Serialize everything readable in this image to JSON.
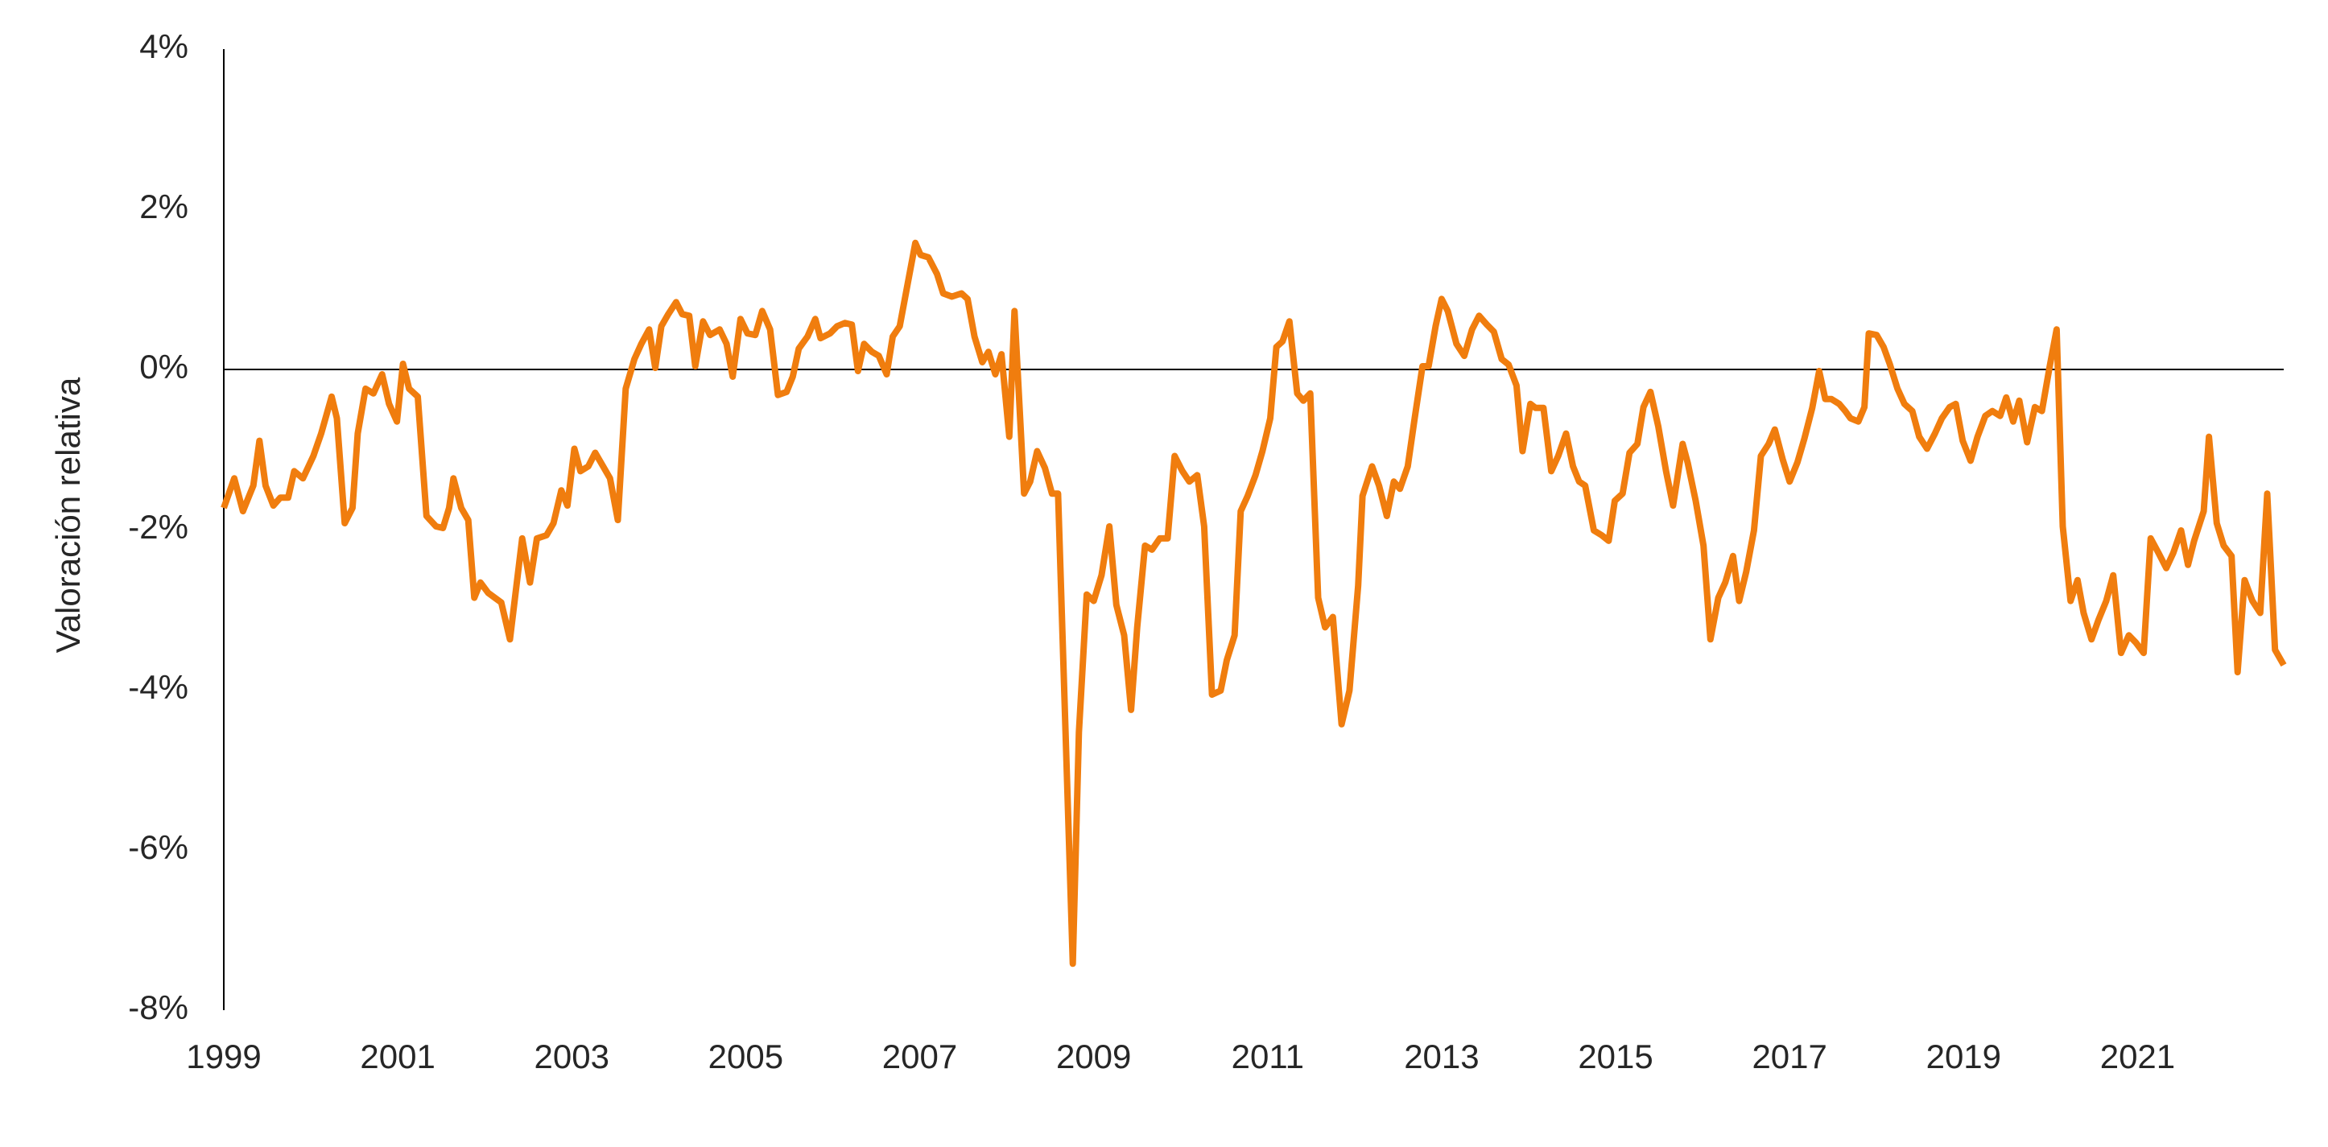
{
  "chart_data": {
    "type": "line",
    "y_label": "Valoración relativa",
    "color": "#f07d0e",
    "reference_line": 0,
    "xlim": [
      1999,
      2022.68
    ],
    "xticks": [
      1999,
      2001,
      2003,
      2005,
      2007,
      2009,
      2011,
      2013,
      2015,
      2017,
      2019,
      2021
    ],
    "ylim": [
      -8,
      4
    ],
    "yticks": [
      {
        "value": -8,
        "label": "-8%"
      },
      {
        "value": -6,
        "label": "-6%"
      },
      {
        "value": -4,
        "label": "-4%"
      },
      {
        "value": -2,
        "label": "-2%"
      },
      {
        "value": 0,
        "label": "0%"
      },
      {
        "value": 2,
        "label": "2%"
      },
      {
        "value": 4,
        "label": "4%"
      }
    ],
    "x": [
      1999.0,
      1999.12,
      1999.22,
      1999.34,
      1999.41,
      1999.48,
      1999.57,
      1999.65,
      1999.74,
      1999.81,
      1999.91,
      2000.03,
      2000.12,
      2000.24,
      2000.3,
      2000.39,
      2000.48,
      2000.54,
      2000.63,
      2000.72,
      2000.82,
      2000.9,
      2000.99,
      2001.06,
      2001.13,
      2001.23,
      2001.33,
      2001.44,
      2001.52,
      2001.59,
      2001.64,
      2001.73,
      2001.81,
      2001.88,
      2001.95,
      2002.04,
      2002.19,
      2002.29,
      2002.43,
      2002.52,
      2002.6,
      2002.71,
      2002.79,
      2002.88,
      2002.95,
      2003.03,
      2003.1,
      2003.19,
      2003.27,
      2003.36,
      2003.44,
      2003.53,
      2003.62,
      2003.72,
      2003.8,
      2003.89,
      2003.96,
      2004.03,
      2004.11,
      2004.2,
      2004.27,
      2004.35,
      2004.42,
      2004.51,
      2004.59,
      2004.7,
      2004.78,
      2004.85,
      2004.94,
      2005.02,
      2005.11,
      2005.19,
      2005.28,
      2005.37,
      2005.47,
      2005.54,
      2005.61,
      2005.71,
      2005.8,
      2005.86,
      2005.97,
      2006.05,
      2006.14,
      2006.22,
      2006.29,
      2006.36,
      2006.45,
      2006.53,
      2006.62,
      2006.69,
      2006.77,
      2006.86,
      2006.95,
      2007.01,
      2007.1,
      2007.2,
      2007.27,
      2007.37,
      2007.48,
      2007.55,
      2007.63,
      2007.72,
      2007.79,
      2007.87,
      2007.94,
      2008.03,
      2008.09,
      2008.2,
      2008.27,
      2008.35,
      2008.44,
      2008.52,
      2008.59,
      2008.76,
      2008.83,
      2008.92,
      2009.0,
      2009.09,
      2009.18,
      2009.26,
      2009.35,
      2009.43,
      2009.5,
      2009.59,
      2009.67,
      2009.76,
      2009.85,
      2009.93,
      2010.02,
      2010.1,
      2010.19,
      2010.27,
      2010.36,
      2010.46,
      2010.53,
      2010.62,
      2010.69,
      2010.77,
      2010.86,
      2010.94,
      2011.03,
      2011.1,
      2011.17,
      2011.25,
      2011.34,
      2011.41,
      2011.49,
      2011.58,
      2011.66,
      2011.75,
      2011.85,
      2011.94,
      2012.04,
      2012.09,
      2012.2,
      2012.28,
      2012.37,
      2012.45,
      2012.52,
      2012.61,
      2012.69,
      2012.78,
      2012.85,
      2012.93,
      2013.0,
      2013.07,
      2013.17,
      2013.26,
      2013.35,
      2013.43,
      2013.52,
      2013.6,
      2013.69,
      2013.77,
      2013.86,
      2013.93,
      2014.02,
      2014.08,
      2014.17,
      2014.26,
      2014.34,
      2014.43,
      2014.51,
      2014.58,
      2014.65,
      2014.75,
      2014.84,
      2014.92,
      2014.99,
      2015.08,
      2015.16,
      2015.25,
      2015.32,
      2015.4,
      2015.49,
      2015.58,
      2015.66,
      2015.77,
      2015.83,
      2015.92,
      2016.01,
      2016.09,
      2016.18,
      2016.26,
      2016.35,
      2016.42,
      2016.5,
      2016.59,
      2016.67,
      2016.76,
      2016.83,
      2016.92,
      2017.0,
      2017.09,
      2017.17,
      2017.26,
      2017.34,
      2017.41,
      2017.48,
      2017.57,
      2017.64,
      2017.7,
      2017.79,
      2017.86,
      2017.91,
      2018.0,
      2018.08,
      2018.15,
      2018.24,
      2018.32,
      2018.41,
      2018.49,
      2018.58,
      2018.67,
      2018.75,
      2018.84,
      2018.91,
      2018.99,
      2019.08,
      2019.16,
      2019.25,
      2019.33,
      2019.42,
      2019.49,
      2019.57,
      2019.64,
      2019.73,
      2019.82,
      2019.9,
      2019.99,
      2020.07,
      2020.14,
      2020.23,
      2020.31,
      2020.38,
      2020.47,
      2020.55,
      2020.64,
      2020.72,
      2020.81,
      2020.9,
      2020.98,
      2021.07,
      2021.15,
      2021.24,
      2021.33,
      2021.41,
      2021.5,
      2021.58,
      2021.65,
      2021.76,
      2021.82,
      2021.91,
      2021.99,
      2022.08,
      2022.15,
      2022.23,
      2022.32,
      2022.41,
      2022.49,
      2022.58,
      2022.68
    ],
    "values": [
      -1.73,
      -1.36,
      -1.77,
      -1.45,
      -0.89,
      -1.45,
      -1.7,
      -1.6,
      -1.6,
      -1.27,
      -1.36,
      -1.08,
      -0.8,
      -0.34,
      -0.61,
      -1.92,
      -1.73,
      -0.8,
      -0.24,
      -0.3,
      -0.06,
      -0.43,
      -0.65,
      0.07,
      -0.24,
      -0.34,
      -1.83,
      -1.96,
      -1.98,
      -1.73,
      -1.36,
      -1.73,
      -1.88,
      -2.85,
      -2.66,
      -2.79,
      -2.91,
      -3.37,
      -2.11,
      -2.66,
      -2.11,
      -2.07,
      -1.92,
      -1.51,
      -1.7,
      -0.99,
      -1.27,
      -1.21,
      -1.04,
      -1.21,
      -1.36,
      -1.88,
      -0.24,
      0.13,
      0.32,
      0.5,
      0.02,
      0.54,
      0.69,
      0.84,
      0.69,
      0.67,
      0.04,
      0.6,
      0.43,
      0.5,
      0.32,
      -0.09,
      0.63,
      0.45,
      0.43,
      0.73,
      0.5,
      -0.32,
      -0.28,
      -0.09,
      0.26,
      0.41,
      0.63,
      0.39,
      0.45,
      0.54,
      0.58,
      0.56,
      -0.02,
      0.32,
      0.22,
      0.17,
      -0.06,
      0.41,
      0.54,
      1.06,
      1.58,
      1.43,
      1.4,
      1.19,
      0.95,
      0.91,
      0.95,
      0.88,
      0.41,
      0.09,
      0.22,
      -0.06,
      0.19,
      -0.84,
      0.73,
      -1.55,
      -1.4,
      -1.02,
      -1.23,
      -1.55,
      -1.55,
      -7.42,
      -4.53,
      -2.81,
      -2.89,
      -2.57,
      -1.96,
      -2.94,
      -3.32,
      -4.25,
      -3.22,
      -2.2,
      -2.25,
      -2.11,
      -2.11,
      -1.08,
      -1.27,
      -1.4,
      -1.32,
      -1.96,
      -4.06,
      -4.01,
      -3.63,
      -3.32,
      -1.77,
      -1.58,
      -1.32,
      -1.02,
      -0.61,
      0.28,
      0.35,
      0.6,
      -0.3,
      -0.39,
      -0.3,
      -2.85,
      -3.22,
      -3.09,
      -4.43,
      -4.01,
      -2.7,
      -1.58,
      -1.21,
      -1.45,
      -1.83,
      -1.4,
      -1.49,
      -1.21,
      -0.61,
      0.04,
      0.04,
      0.54,
      0.88,
      0.73,
      0.32,
      0.17,
      0.5,
      0.67,
      0.56,
      0.47,
      0.13,
      0.06,
      -0.2,
      -1.02,
      -0.43,
      -0.48,
      -0.48,
      -1.27,
      -1.08,
      -0.8,
      -1.21,
      -1.4,
      -1.45,
      -2.01,
      -2.07,
      -2.14,
      -1.64,
      -1.55,
      -1.04,
      -0.93,
      -0.47,
      -0.28,
      -0.71,
      -1.27,
      -1.7,
      -0.93,
      -1.17,
      -1.64,
      -2.2,
      -3.37,
      -2.85,
      -2.66,
      -2.33,
      -2.89,
      -2.53,
      -2.01,
      -1.08,
      -0.93,
      -0.75,
      -1.12,
      -1.4,
      -1.16,
      -0.86,
      -0.48,
      -0.02,
      -0.37,
      -0.37,
      -0.43,
      -0.52,
      -0.61,
      -0.65,
      -0.47,
      0.45,
      0.43,
      0.28,
      0.07,
      -0.24,
      -0.43,
      -0.52,
      -0.84,
      -0.99,
      -0.8,
      -0.61,
      -0.47,
      -0.43,
      -0.89,
      -1.14,
      -0.84,
      -0.58,
      -0.52,
      -0.58,
      -0.35,
      -0.65,
      -0.39,
      -0.91,
      -0.47,
      -0.52,
      0.04,
      0.5,
      -1.96,
      -2.89,
      -2.63,
      -3.04,
      -3.37,
      -3.13,
      -2.89,
      -2.57,
      -3.54,
      -3.32,
      -3.41,
      -3.54,
      -2.11,
      -2.29,
      -2.48,
      -2.29,
      -2.01,
      -2.44,
      -2.14,
      -1.77,
      -0.84,
      -1.92,
      -2.2,
      -2.33,
      -3.78,
      -2.63,
      -2.89,
      -3.04,
      -1.55,
      -3.5,
      -3.69
    ]
  }
}
